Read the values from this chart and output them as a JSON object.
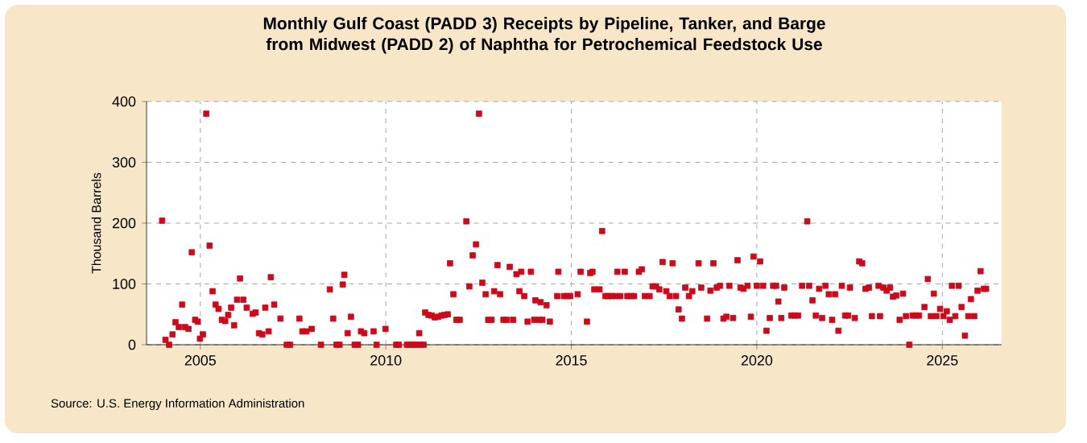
{
  "chart_data": {
    "type": "scatter",
    "title": "Monthly Gulf Coast (PADD 3) Receipts by Pipeline, Tanker, and Barge from Midwest (PADD 2) of Naphtha for Petrochemical Feedstock Use",
    "ylabel": "Thousand Barrels",
    "annotations": [
      "Source: U.S. Energy Information Administration"
    ],
    "x": [
      2003.97,
      2004.06,
      2004.16,
      2004.25,
      2004.33,
      2004.42,
      2004.51,
      2004.59,
      2004.68,
      2004.77,
      2004.86,
      2004.93,
      2004.99,
      2005.07,
      2005.16,
      2005.25,
      2005.33,
      2005.41,
      2005.49,
      2005.58,
      2005.67,
      2005.75,
      2005.83,
      2005.91,
      2005.99,
      2006.07,
      2006.16,
      2006.25,
      2006.41,
      2006.49,
      2006.58,
      2006.67,
      2006.75,
      2006.84,
      2006.9,
      2006.99,
      2007.16,
      2007.33,
      2007.42,
      2007.67,
      2007.75,
      2007.86,
      2008.0,
      2008.25,
      2008.49,
      2008.58,
      2008.67,
      2008.75,
      2008.84,
      2008.88,
      2008.97,
      2009.06,
      2009.16,
      2009.25,
      2009.33,
      2009.42,
      2009.67,
      2009.75,
      2009.99,
      2010.28,
      2010.35,
      2010.57,
      2010.65,
      2010.74,
      2010.83,
      2010.9,
      2010.93,
      2011.02,
      2011.06,
      2011.15,
      2011.24,
      2011.32,
      2011.41,
      2011.5,
      2011.58,
      2011.67,
      2011.73,
      2011.82,
      2011.9,
      2011.99,
      2012.17,
      2012.25,
      2012.34,
      2012.43,
      2012.51,
      2012.6,
      2012.69,
      2012.76,
      2012.85,
      2012.92,
      2013.01,
      2013.08,
      2013.17,
      2013.26,
      2013.34,
      2013.43,
      2013.52,
      2013.6,
      2013.65,
      2013.73,
      2013.82,
      2013.91,
      2014.0,
      2014.03,
      2014.13,
      2014.17,
      2014.22,
      2014.33,
      2014.42,
      2014.62,
      2014.65,
      2014.8,
      2014.88,
      2014.97,
      2015.17,
      2015.25,
      2015.42,
      2015.51,
      2015.57,
      2015.62,
      2015.76,
      2015.83,
      2015.92,
      2016.0,
      2016.09,
      2016.18,
      2016.24,
      2016.32,
      2016.44,
      2016.51,
      2016.6,
      2016.69,
      2016.82,
      2016.9,
      2016.98,
      2017.11,
      2017.19,
      2017.28,
      2017.37,
      2017.46,
      2017.56,
      2017.65,
      2017.73,
      2017.82,
      2017.89,
      2017.98,
      2018.07,
      2018.17,
      2018.26,
      2018.43,
      2018.5,
      2018.66,
      2018.75,
      2018.83,
      2018.92,
      2019.01,
      2019.1,
      2019.18,
      2019.26,
      2019.36,
      2019.48,
      2019.56,
      2019.64,
      2019.75,
      2019.84,
      2019.91,
      2020.0,
      2020.09,
      2020.17,
      2020.26,
      2020.35,
      2020.44,
      2020.52,
      2020.58,
      2020.66,
      2020.74,
      2020.93,
      2021.02,
      2021.11,
      2021.22,
      2021.36,
      2021.41,
      2021.5,
      2021.59,
      2021.68,
      2021.76,
      2021.85,
      2021.94,
      2022.03,
      2022.11,
      2022.2,
      2022.29,
      2022.38,
      2022.46,
      2022.51,
      2022.64,
      2022.76,
      2022.84,
      2022.93,
      2023.02,
      2023.1,
      2023.28,
      2023.32,
      2023.41,
      2023.5,
      2023.59,
      2023.67,
      2023.76,
      2023.85,
      2023.94,
      2024.02,
      2024.11,
      2024.2,
      2024.29,
      2024.37,
      2024.52,
      2024.61,
      2024.69,
      2024.77,
      2024.84,
      2024.94,
      2025.03,
      2025.12,
      2025.2,
      2025.26,
      2025.35,
      2025.44,
      2025.52,
      2025.61,
      2025.7,
      2025.77,
      2025.86,
      2025.95,
      2026.03,
      2026.12,
      2026.18
    ],
    "values": [
      204,
      8,
      0,
      17,
      37,
      29,
      66,
      29,
      26,
      152,
      41,
      38,
      10,
      17,
      380,
      163,
      88,
      66,
      59,
      41,
      39,
      49,
      61,
      32,
      74,
      109,
      74,
      61,
      51,
      53,
      19,
      17,
      61,
      22,
      111,
      66,
      43,
      0,
      0,
      43,
      22,
      22,
      26,
      0,
      91,
      43,
      0,
      0,
      99,
      115,
      19,
      46,
      0,
      0,
      22,
      19,
      22,
      0,
      26,
      0,
      0,
      0,
      0,
      0,
      0,
      19,
      0,
      0,
      53,
      49,
      48,
      45,
      46,
      48,
      49,
      50,
      134,
      83,
      41,
      41,
      203,
      96,
      147,
      165,
      380,
      102,
      83,
      41,
      41,
      88,
      131,
      83,
      41,
      41,
      128,
      41,
      116,
      88,
      120,
      80,
      38,
      120,
      41,
      73,
      41,
      70,
      41,
      65,
      38,
      80,
      120,
      80,
      80,
      80,
      83,
      120,
      38,
      118,
      120,
      91,
      91,
      187,
      80,
      80,
      80,
      80,
      120,
      80,
      120,
      80,
      80,
      80,
      120,
      124,
      80,
      80,
      96,
      96,
      91,
      136,
      88,
      80,
      134,
      80,
      58,
      43,
      94,
      80,
      88,
      134,
      94,
      43,
      89,
      134,
      94,
      97,
      43,
      46,
      97,
      44,
      139,
      94,
      92,
      97,
      46,
      145,
      97,
      137,
      97,
      23,
      44,
      97,
      97,
      71,
      44,
      94,
      48,
      48,
      48,
      97,
      203,
      97,
      73,
      48,
      92,
      44,
      97,
      83,
      41,
      83,
      23,
      97,
      48,
      48,
      94,
      44,
      137,
      134,
      92,
      94,
      47,
      97,
      47,
      94,
      89,
      94,
      79,
      81,
      41,
      84,
      47,
      0,
      48,
      48,
      48,
      62,
      108,
      47,
      84,
      47,
      59,
      47,
      55,
      41,
      97,
      47,
      97,
      62,
      15,
      47,
      75,
      47,
      89,
      121,
      92,
      92
    ],
    "color": "#cc0a1c",
    "marker": "square",
    "xlim": [
      2003.55,
      2026.6
    ],
    "ylim": [
      0,
      400
    ],
    "xticks": [
      2005,
      2010,
      2015,
      2020,
      2025
    ],
    "yticks": [
      0,
      100,
      200,
      300,
      400
    ],
    "grid": true
  }
}
